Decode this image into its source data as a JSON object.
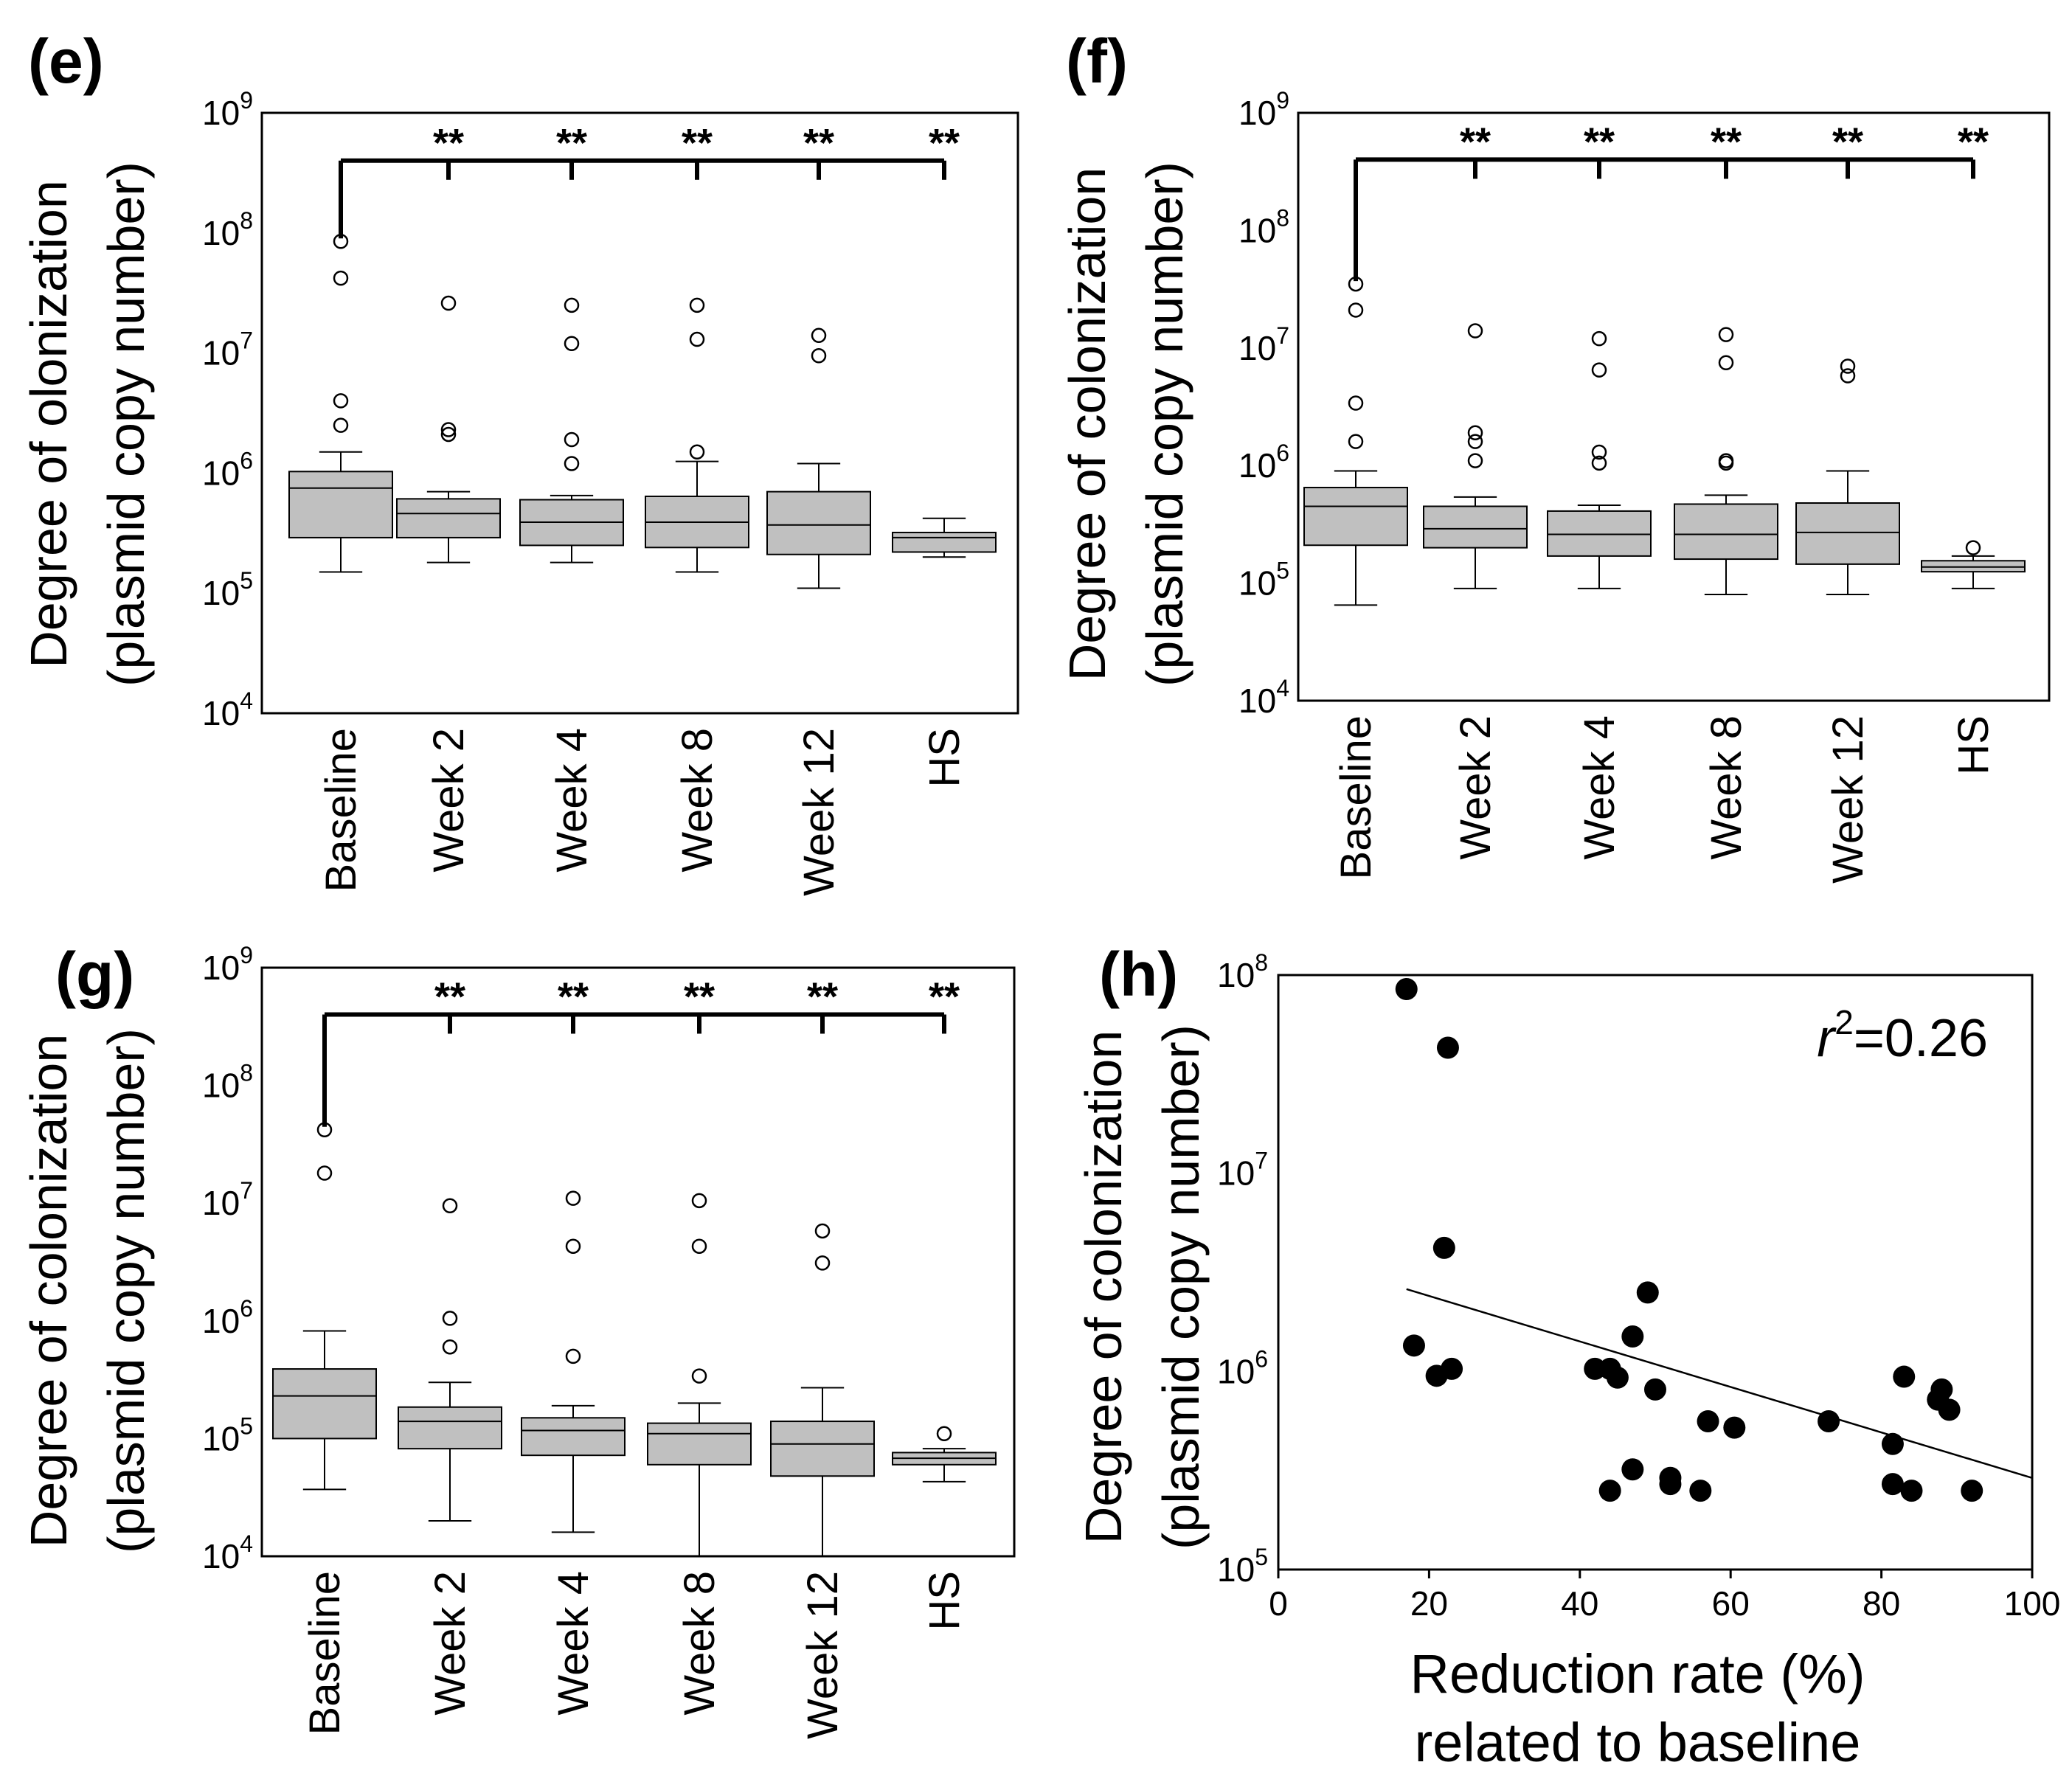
{
  "colors": {
    "box_fill": "#c0c0c0",
    "stroke": "#000000",
    "background": "#ffffff",
    "point_fill": "#000000"
  },
  "chart_data": [
    {
      "panel": "(e)",
      "type": "box",
      "scale": "log",
      "ylabel_line1": "Degree of olonization",
      "ylabel_line2": "(plasmid copy number)",
      "ylim": [
        10000,
        1000000000
      ],
      "yticks": [
        {
          "base": "10",
          "exp": "4"
        },
        {
          "base": "10",
          "exp": "5"
        },
        {
          "base": "10",
          "exp": "6"
        },
        {
          "base": "10",
          "exp": "7"
        },
        {
          "base": "10",
          "exp": "8"
        },
        {
          "base": "10",
          "exp": "9"
        }
      ],
      "categories": [
        "Baseline",
        "Week 2",
        "Week 4",
        "Week 8",
        "Week 12",
        "HS"
      ],
      "significance_label": "**",
      "significance_bracket_value": 400000000,
      "boxes": [
        {
          "whisker_low": 150000,
          "q1": 290000,
          "median": 750000,
          "q3": 1030000,
          "whisker_high": 1500000,
          "outliers": [
            85000000,
            42000000,
            4000000,
            2500000
          ]
        },
        {
          "whisker_low": 180000,
          "q1": 290000,
          "median": 460000,
          "q3": 610000,
          "whisker_high": 700000,
          "outliers": [
            26000000,
            2300000,
            2100000
          ]
        },
        {
          "whisker_low": 180000,
          "q1": 250000,
          "median": 390000,
          "q3": 600000,
          "whisker_high": 650000,
          "outliers": [
            25000000,
            12000000,
            1900000,
            1200000
          ]
        },
        {
          "whisker_low": 150000,
          "q1": 240000,
          "median": 390000,
          "q3": 640000,
          "whisker_high": 1250000,
          "outliers": [
            25000000,
            13000000,
            1500000
          ]
        },
        {
          "whisker_low": 110000,
          "q1": 210000,
          "median": 370000,
          "q3": 700000,
          "whisker_high": 1200000,
          "outliers": [
            14000000,
            9500000
          ]
        },
        {
          "whisker_low": 200000,
          "q1": 220000,
          "median": 290000,
          "q3": 320000,
          "whisker_high": 420000,
          "outliers": []
        }
      ]
    },
    {
      "panel": "(f)",
      "type": "box",
      "scale": "log",
      "ylabel_line1": "Degree of colonization",
      "ylabel_line2": "(plasmid copy number)",
      "ylim": [
        10000,
        1000000000
      ],
      "yticks": [
        {
          "base": "10",
          "exp": "4"
        },
        {
          "base": "10",
          "exp": "5"
        },
        {
          "base": "10",
          "exp": "6"
        },
        {
          "base": "10",
          "exp": "7"
        },
        {
          "base": "10",
          "exp": "8"
        },
        {
          "base": "10",
          "exp": "9"
        }
      ],
      "categories": [
        "Baseline",
        "Week 2",
        "Week 4",
        "Week 8",
        "Week 12",
        "HS"
      ],
      "significance_label": "**",
      "significance_bracket_value": 400000000,
      "boxes": [
        {
          "whisker_low": 65000,
          "q1": 210000,
          "median": 450000,
          "q3": 650000,
          "whisker_high": 900000,
          "outliers": [
            35000000,
            21000000,
            3400000,
            1600000
          ]
        },
        {
          "whisker_low": 90000,
          "q1": 200000,
          "median": 290000,
          "q3": 450000,
          "whisker_high": 540000,
          "outliers": [
            14000000,
            1900000,
            1600000,
            1100000
          ]
        },
        {
          "whisker_low": 90000,
          "q1": 170000,
          "median": 260000,
          "q3": 410000,
          "whisker_high": 460000,
          "outliers": [
            12000000,
            6500000,
            1300000,
            1050000
          ]
        },
        {
          "whisker_low": 80000,
          "q1": 160000,
          "median": 260000,
          "q3": 470000,
          "whisker_high": 560000,
          "outliers": [
            13000000,
            7500000,
            1100000,
            1050000
          ]
        },
        {
          "whisker_low": 80000,
          "q1": 145000,
          "median": 270000,
          "q3": 480000,
          "whisker_high": 900000,
          "outliers": [
            7000000,
            5800000
          ]
        },
        {
          "whisker_low": 90000,
          "q1": 125000,
          "median": 137000,
          "q3": 155000,
          "whisker_high": 170000,
          "outliers": [
            200000
          ]
        }
      ]
    },
    {
      "panel": "(g)",
      "type": "box",
      "scale": "log",
      "ylabel_line1": "Degree of colonization",
      "ylabel_line2": "(plasmid copy number)",
      "ylim": [
        10000,
        1000000000
      ],
      "yticks": [
        {
          "base": "10",
          "exp": "4"
        },
        {
          "base": "10",
          "exp": "5"
        },
        {
          "base": "10",
          "exp": "6"
        },
        {
          "base": "10",
          "exp": "7"
        },
        {
          "base": "10",
          "exp": "8"
        },
        {
          "base": "10",
          "exp": "9"
        }
      ],
      "categories": [
        "Baseline",
        "Week 2",
        "Week 4",
        "Week 8",
        "Week 12",
        "HS"
      ],
      "significance_label": "**",
      "significance_bracket_value": 400000000,
      "boxes": [
        {
          "whisker_low": 37000,
          "q1": 100000,
          "median": 230000,
          "q3": 390000,
          "whisker_high": 820000,
          "outliers": [
            42000000,
            18000000
          ]
        },
        {
          "whisker_low": 20000,
          "q1": 82000,
          "median": 140000,
          "q3": 185000,
          "whisker_high": 300000,
          "outliers": [
            9500000,
            1050000,
            600000
          ]
        },
        {
          "whisker_low": 16000,
          "q1": 72000,
          "median": 117000,
          "q3": 150000,
          "whisker_high": 190000,
          "outliers": [
            11000000,
            4300000,
            500000
          ]
        },
        {
          "whisker_low": 10000,
          "q1": 60000,
          "median": 110000,
          "q3": 135000,
          "whisker_high": 200000,
          "outliers": [
            10500000,
            4300000,
            340000
          ]
        },
        {
          "whisker_low": 10000,
          "q1": 48000,
          "median": 90000,
          "q3": 140000,
          "whisker_high": 270000,
          "outliers": [
            5800000,
            3100000
          ]
        },
        {
          "whisker_low": 43000,
          "q1": 60000,
          "median": 68000,
          "q3": 76000,
          "whisker_high": 82000,
          "outliers": [
            110000
          ]
        }
      ]
    },
    {
      "panel": "(h)",
      "type": "scatter",
      "scale": "log-y",
      "ylabel_line1": "Degree of colonization",
      "ylabel_line2": "(plasmid copy number)",
      "xlabel_line1": "Reduction rate (%)",
      "xlabel_line2": "related to baseline",
      "xlim": [
        0,
        100
      ],
      "ylim": [
        100000,
        100000000
      ],
      "xticks": [
        "0",
        "20",
        "40",
        "60",
        "80",
        "100"
      ],
      "yticks": [
        {
          "base": "10",
          "exp": "5"
        },
        {
          "base": "10",
          "exp": "6"
        },
        {
          "base": "10",
          "exp": "7"
        },
        {
          "base": "10",
          "exp": "8"
        }
      ],
      "annotation": {
        "var": "r",
        "sup": "2",
        "text": "=0.26"
      },
      "trendline": {
        "x": [
          17,
          100
        ],
        "y": [
          2600000,
          290000
        ]
      },
      "points": [
        {
          "x": 17,
          "y": 85000000
        },
        {
          "x": 22.5,
          "y": 43000000
        },
        {
          "x": 22,
          "y": 4200000
        },
        {
          "x": 18,
          "y": 1350000
        },
        {
          "x": 21,
          "y": 950000
        },
        {
          "x": 23,
          "y": 1030000
        },
        {
          "x": 49,
          "y": 2500000
        },
        {
          "x": 47,
          "y": 1500000
        },
        {
          "x": 42,
          "y": 1030000
        },
        {
          "x": 44,
          "y": 1030000
        },
        {
          "x": 45,
          "y": 930000
        },
        {
          "x": 50,
          "y": 810000
        },
        {
          "x": 57,
          "y": 560000
        },
        {
          "x": 60.5,
          "y": 520000
        },
        {
          "x": 47,
          "y": 320000
        },
        {
          "x": 52,
          "y": 290000
        },
        {
          "x": 52,
          "y": 270000
        },
        {
          "x": 44,
          "y": 250000
        },
        {
          "x": 56,
          "y": 250000
        },
        {
          "x": 73,
          "y": 560000
        },
        {
          "x": 83,
          "y": 940000
        },
        {
          "x": 88,
          "y": 810000
        },
        {
          "x": 87.5,
          "y": 720000
        },
        {
          "x": 89,
          "y": 640000
        },
        {
          "x": 81.5,
          "y": 430000
        },
        {
          "x": 81.5,
          "y": 270000
        },
        {
          "x": 84,
          "y": 250000
        },
        {
          "x": 92,
          "y": 250000
        }
      ]
    }
  ]
}
